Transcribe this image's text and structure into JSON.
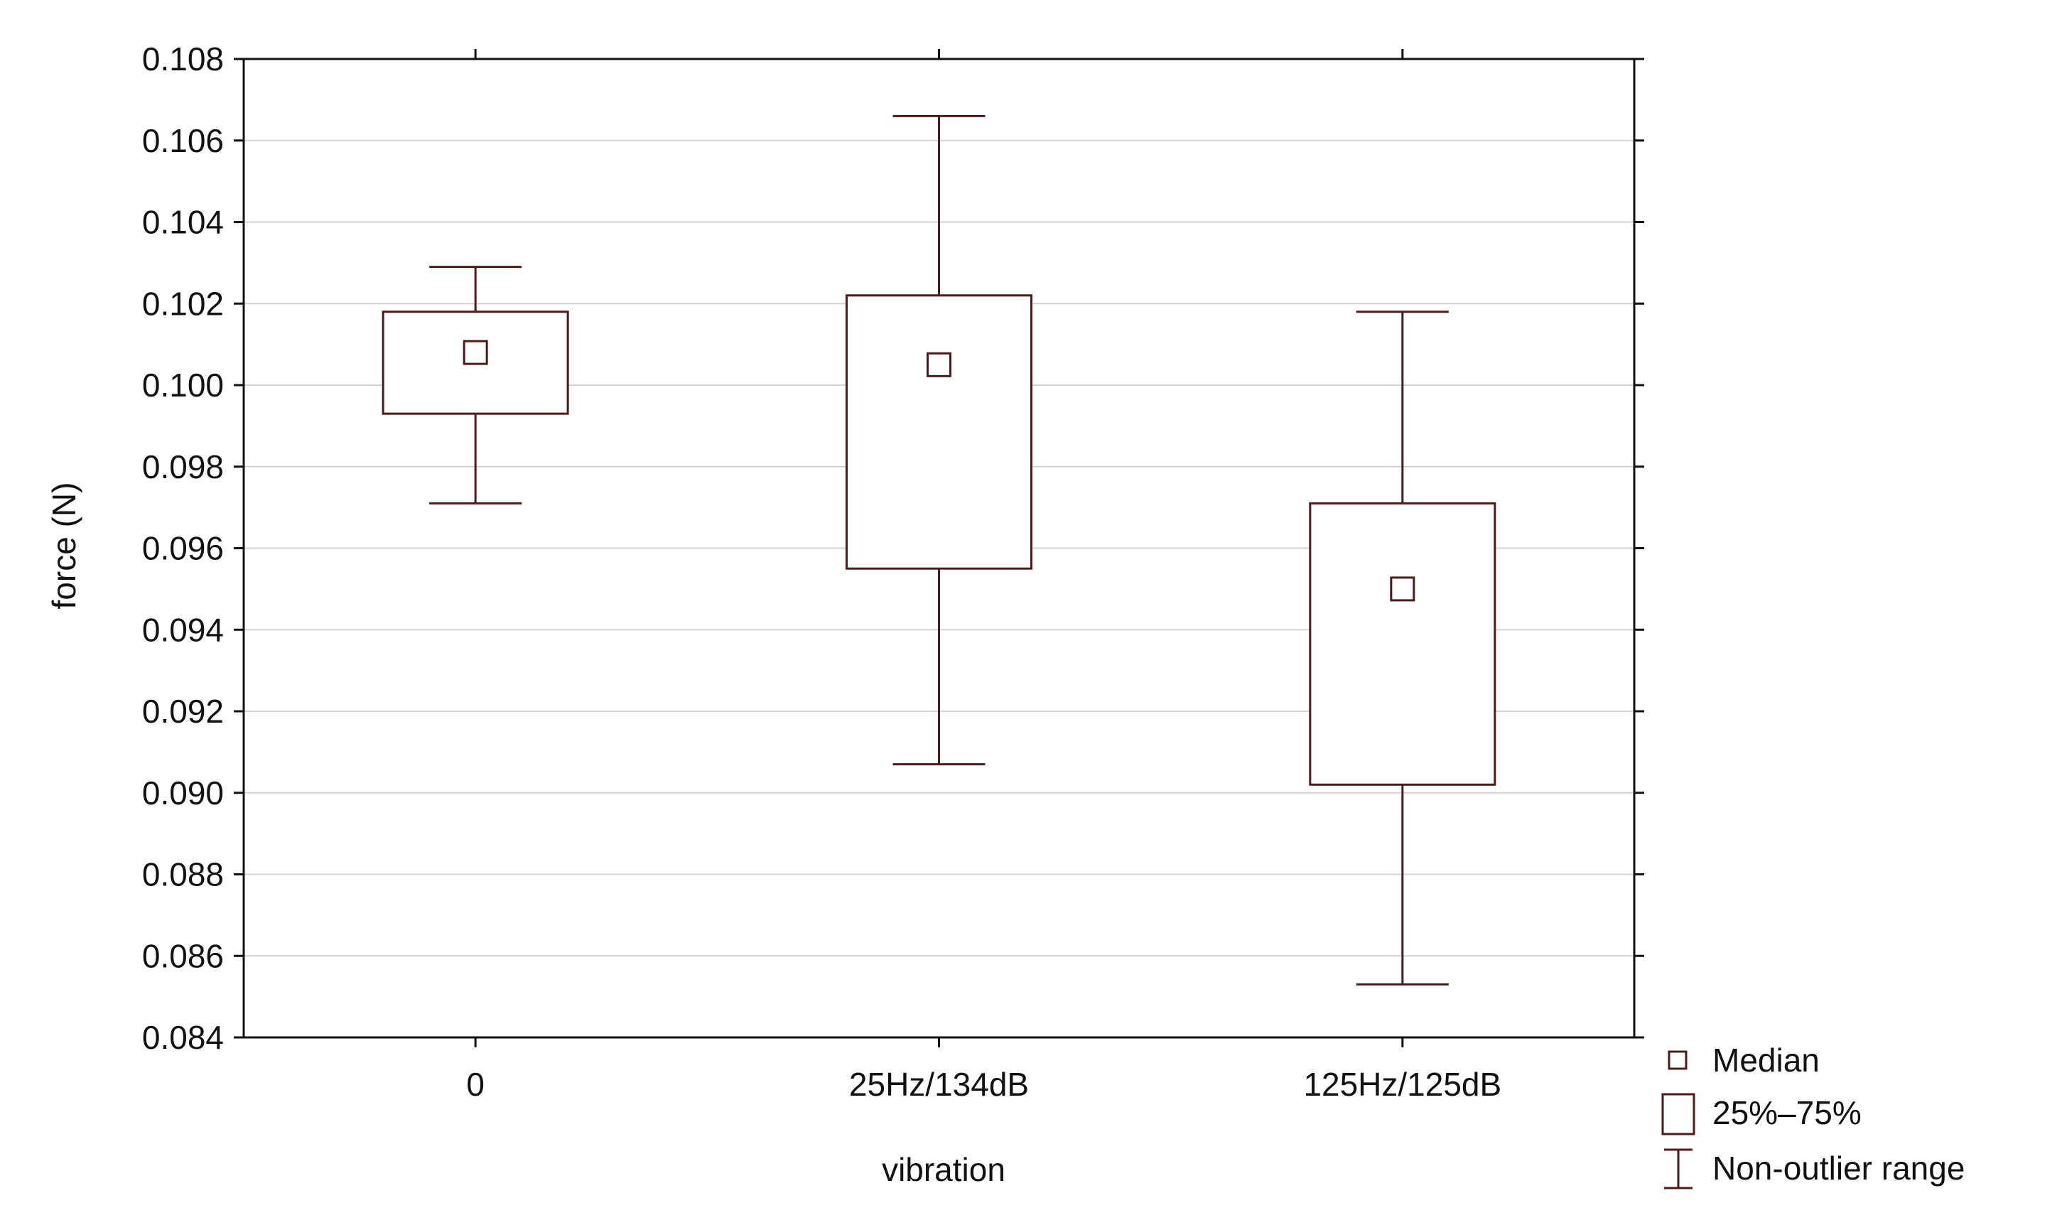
{
  "chart_data": {
    "type": "boxplot",
    "title": "",
    "xlabel": "vibration",
    "ylabel": "force (N)",
    "ylim": [
      0.084,
      0.108
    ],
    "yticks": [
      "0.084",
      "0.086",
      "0.088",
      "0.090",
      "0.092",
      "0.094",
      "0.096",
      "0.098",
      "0.100",
      "0.102",
      "0.104",
      "0.106",
      "0.108"
    ],
    "categories": [
      "0",
      "25Hz/134dB",
      "125Hz/125dB"
    ],
    "series": [
      {
        "category": "0",
        "min": 0.0971,
        "q1": 0.0993,
        "median": 0.1008,
        "q3": 0.1018,
        "max": 0.1029
      },
      {
        "category": "25Hz/134dB",
        "min": 0.0907,
        "q1": 0.0955,
        "median": 0.1005,
        "q3": 0.1022,
        "max": 0.1066
      },
      {
        "category": "125Hz/125dB",
        "min": 0.0853,
        "q1": 0.0902,
        "median": 0.095,
        "q3": 0.0971,
        "max": 0.1018
      }
    ],
    "grid": true,
    "legend_position": "bottom-right",
    "legend": {
      "median": "Median",
      "box": "25%–75%",
      "whisker": "Non-outlier range"
    },
    "colors": {
      "stroke": "#4a1c1c",
      "grid": "#d3d3d3",
      "frame": "#111111"
    }
  }
}
